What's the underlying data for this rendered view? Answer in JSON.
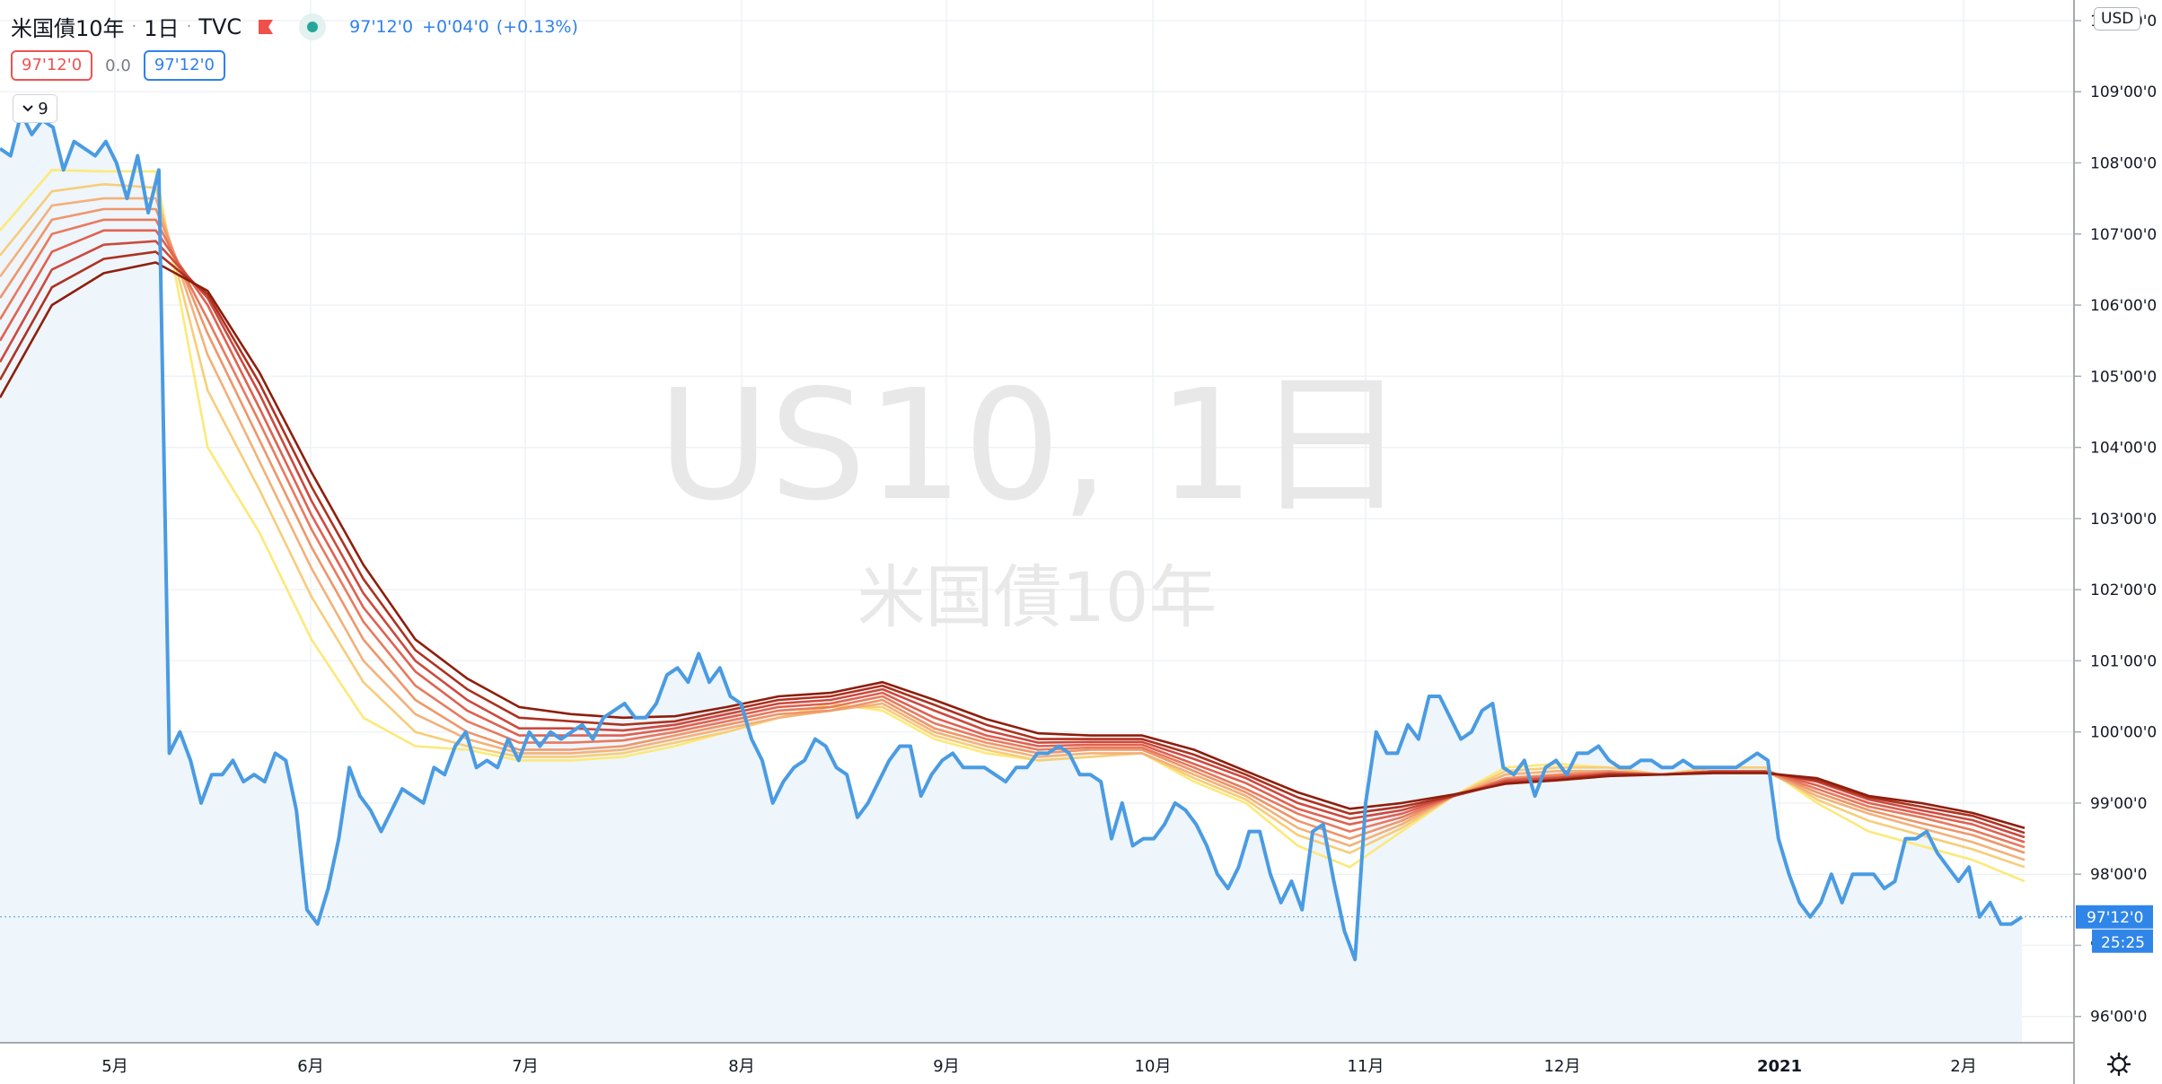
{
  "header": {
    "symbol": "米国債10年",
    "interval": "1日",
    "exchange": "TVC",
    "last_price": "97'12'0",
    "change": "+0'04'0",
    "change_pct": "(+0.13%)",
    "bid": "97'12'0",
    "spread": "0.0",
    "ask": "97'12'0",
    "indicator_count": "9"
  },
  "axis": {
    "currency": "USD",
    "current_price_label": "97'12'0",
    "countdown_label": "25:25"
  },
  "watermark": {
    "main": "US10, 1日",
    "sub": "米国債10年"
  },
  "colors": {
    "price_line": "#4a9be2",
    "area_fill": "#eef5fb",
    "ma_ribbon": [
      "#fce97a",
      "#f7cd7a",
      "#f3b17a",
      "#ee9669",
      "#e77a5e",
      "#df6150",
      "#cc4a3e",
      "#ad3220",
      "#8e1e0c"
    ]
  },
  "chart_data": {
    "type": "line",
    "title": "",
    "ylim": [
      95.625,
      110.2
    ],
    "y_ticks": [
      96,
      97,
      98,
      99,
      100,
      101,
      102,
      103,
      104,
      105,
      106,
      107,
      108,
      109,
      110
    ],
    "y_tick_labels": [
      "96'00'0",
      "97'00'0",
      "98'00'0",
      "99'00'0",
      "100'00'0",
      "101'00'0",
      "102'00'0",
      "103'00'0",
      "104'00'0",
      "105'00'0",
      "106'00'0",
      "107'00'0",
      "108'00'0",
      "109'00'0",
      "110'00'0"
    ],
    "x_tick_labels": [
      "5月",
      "6月",
      "7月",
      "8月",
      "9月",
      "10月",
      "11月",
      "12月",
      "2021",
      "2月"
    ],
    "grid": true,
    "series": [
      {
        "values": [
          108.2,
          108.1,
          108.7,
          108.4,
          108.6,
          108.5,
          107.9,
          108.3,
          108.2,
          108.1,
          108.3,
          108.0,
          107.5,
          108.1,
          107.3,
          107.9,
          99.7,
          100.0,
          99.6,
          99.0,
          99.4,
          99.4,
          99.6,
          99.3,
          99.4,
          99.3,
          99.7,
          99.6,
          98.9,
          97.5,
          97.3,
          97.8,
          98.5,
          99.5,
          99.1,
          98.9,
          98.6,
          98.9,
          99.2,
          99.1,
          99.0,
          99.5,
          99.4,
          99.8,
          100.0,
          99.5,
          99.6,
          99.5,
          99.9,
          99.6,
          100.0,
          99.8,
          100.0,
          99.9,
          100.0,
          100.1,
          99.9,
          100.2,
          100.3,
          100.4,
          100.2,
          100.2,
          100.4,
          100.8,
          100.9,
          100.7,
          101.1,
          100.7,
          100.9,
          100.5,
          100.4,
          99.9,
          99.6,
          99.0,
          99.3,
          99.5,
          99.6,
          99.9,
          99.8,
          99.5,
          99.4,
          98.8,
          99.0,
          99.3,
          99.6,
          99.8,
          99.8,
          99.1,
          99.4,
          99.6,
          99.7,
          99.5,
          99.5,
          99.5,
          99.4,
          99.3,
          99.5,
          99.5,
          99.7,
          99.7,
          99.8,
          99.7,
          99.4,
          99.4,
          99.3,
          98.5,
          99.0,
          98.4,
          98.5,
          98.5,
          98.7,
          99.0,
          98.9,
          98.7,
          98.4,
          98.0,
          97.8,
          98.1,
          98.6,
          98.6,
          98.0,
          97.6,
          97.9,
          97.5,
          98.6,
          98.7,
          97.9,
          97.2,
          96.8,
          99.0,
          100.0,
          99.7,
          99.7,
          100.1,
          99.9,
          100.5,
          100.5,
          100.2,
          99.9,
          100.0,
          100.3,
          100.4,
          99.5,
          99.4,
          99.6,
          99.1,
          99.5,
          99.6,
          99.4,
          99.7,
          99.7,
          99.8,
          99.6,
          99.5,
          99.5,
          99.6,
          99.6,
          99.5,
          99.5,
          99.6,
          99.5,
          99.5,
          99.5,
          99.5,
          99.5,
          99.6,
          99.7,
          99.6,
          98.5,
          98.0,
          97.6,
          97.4,
          97.6,
          98.0,
          97.6,
          98.0,
          98.0,
          98.0,
          97.8,
          97.9,
          98.5,
          98.5,
          98.6,
          98.3,
          98.1,
          97.9,
          98.1,
          97.4,
          97.6,
          97.3,
          97.3,
          97.4
        ]
      }
    ],
    "ma_ribbon": {
      "type": "line",
      "count": 9,
      "note_lengths": [],
      "series": [
        {
          "values": [
            107.05,
            107.9,
            107.88,
            107.88,
            104.0,
            102.8,
            101.3,
            100.2,
            99.8,
            99.75,
            99.6,
            99.6,
            99.65,
            99.8,
            100.0,
            100.2,
            100.4,
            100.3,
            99.9,
            99.7,
            99.6,
            99.65,
            99.7,
            99.3,
            99.0,
            98.4,
            98.1,
            98.6,
            99.1,
            99.5,
            99.55,
            99.5,
            99.4,
            99.5,
            99.5,
            99.0,
            98.6,
            98.4,
            98.2,
            97.9
          ]
        },
        {
          "values": [
            106.7,
            107.6,
            107.7,
            107.65,
            104.8,
            103.4,
            101.9,
            100.7,
            100.0,
            99.8,
            99.65,
            99.65,
            99.7,
            99.85,
            100.0,
            100.2,
            100.35,
            100.35,
            99.95,
            99.75,
            99.6,
            99.65,
            99.7,
            99.35,
            99.05,
            98.55,
            98.3,
            98.65,
            99.1,
            99.45,
            99.5,
            99.5,
            99.4,
            99.5,
            99.5,
            99.05,
            98.75,
            98.55,
            98.35,
            98.1
          ]
        },
        {
          "values": [
            106.4,
            107.4,
            107.5,
            107.5,
            105.3,
            103.8,
            102.3,
            101.0,
            100.25,
            99.9,
            99.7,
            99.7,
            99.75,
            99.9,
            100.05,
            100.2,
            100.3,
            100.4,
            100.0,
            99.8,
            99.65,
            99.7,
            99.7,
            99.4,
            99.1,
            98.65,
            98.4,
            98.7,
            99.1,
            99.4,
            99.45,
            99.45,
            99.4,
            99.45,
            99.45,
            99.1,
            98.85,
            98.65,
            98.45,
            98.2
          ]
        },
        {
          "values": [
            106.1,
            107.2,
            107.35,
            107.35,
            105.6,
            104.1,
            102.6,
            101.3,
            100.45,
            100.0,
            99.75,
            99.75,
            99.8,
            99.95,
            100.1,
            100.25,
            100.3,
            100.45,
            100.05,
            99.85,
            99.7,
            99.75,
            99.75,
            99.45,
            99.15,
            98.75,
            98.5,
            98.75,
            99.1,
            99.35,
            99.4,
            99.45,
            99.4,
            99.45,
            99.45,
            99.15,
            98.9,
            98.72,
            98.55,
            98.3
          ]
        },
        {
          "values": [
            105.8,
            107.0,
            107.2,
            107.2,
            105.8,
            104.35,
            102.85,
            101.55,
            100.65,
            100.15,
            99.85,
            99.85,
            99.88,
            100.0,
            100.15,
            100.3,
            100.35,
            100.5,
            100.12,
            99.9,
            99.75,
            99.78,
            99.78,
            99.5,
            99.2,
            98.85,
            98.6,
            98.8,
            99.1,
            99.33,
            99.38,
            99.43,
            99.4,
            99.45,
            99.45,
            99.2,
            98.95,
            98.8,
            98.62,
            98.38
          ]
        },
        {
          "values": [
            105.5,
            106.75,
            107.05,
            107.05,
            106.0,
            104.55,
            103.05,
            101.75,
            100.85,
            100.3,
            99.95,
            99.95,
            99.95,
            100.05,
            100.2,
            100.35,
            100.4,
            100.55,
            100.2,
            99.95,
            99.8,
            99.82,
            99.82,
            99.55,
            99.28,
            98.92,
            98.7,
            98.85,
            99.1,
            99.32,
            99.36,
            99.42,
            99.4,
            99.45,
            99.45,
            99.25,
            99.0,
            98.85,
            98.7,
            98.45
          ]
        },
        {
          "values": [
            105.2,
            106.5,
            106.85,
            106.9,
            106.1,
            104.75,
            103.25,
            101.95,
            101.0,
            100.45,
            100.05,
            100.05,
            100.02,
            100.1,
            100.25,
            100.4,
            100.45,
            100.6,
            100.3,
            100.02,
            99.85,
            99.86,
            99.86,
            99.62,
            99.35,
            99.0,
            98.78,
            98.9,
            99.1,
            99.3,
            99.35,
            99.41,
            99.4,
            99.44,
            99.44,
            99.3,
            99.05,
            98.9,
            98.76,
            98.52
          ]
        },
        {
          "values": [
            104.95,
            106.25,
            106.65,
            106.75,
            106.15,
            104.9,
            103.45,
            102.15,
            101.15,
            100.6,
            100.2,
            100.15,
            100.1,
            100.15,
            100.3,
            100.45,
            100.5,
            100.65,
            100.38,
            100.1,
            99.9,
            99.9,
            99.9,
            99.68,
            99.4,
            99.08,
            98.85,
            98.95,
            99.1,
            99.28,
            99.33,
            99.4,
            99.4,
            99.43,
            99.43,
            99.32,
            99.08,
            98.95,
            98.82,
            98.58
          ]
        },
        {
          "values": [
            104.7,
            106.0,
            106.45,
            106.6,
            106.2,
            105.05,
            103.65,
            102.35,
            101.3,
            100.75,
            100.35,
            100.25,
            100.2,
            100.22,
            100.35,
            100.5,
            100.55,
            100.7,
            100.45,
            100.18,
            99.98,
            99.95,
            99.95,
            99.75,
            99.45,
            99.15,
            98.92,
            99.0,
            99.12,
            99.27,
            99.32,
            99.38,
            99.4,
            99.42,
            99.42,
            99.35,
            99.1,
            99.0,
            98.86,
            98.65
          ]
        }
      ]
    }
  }
}
